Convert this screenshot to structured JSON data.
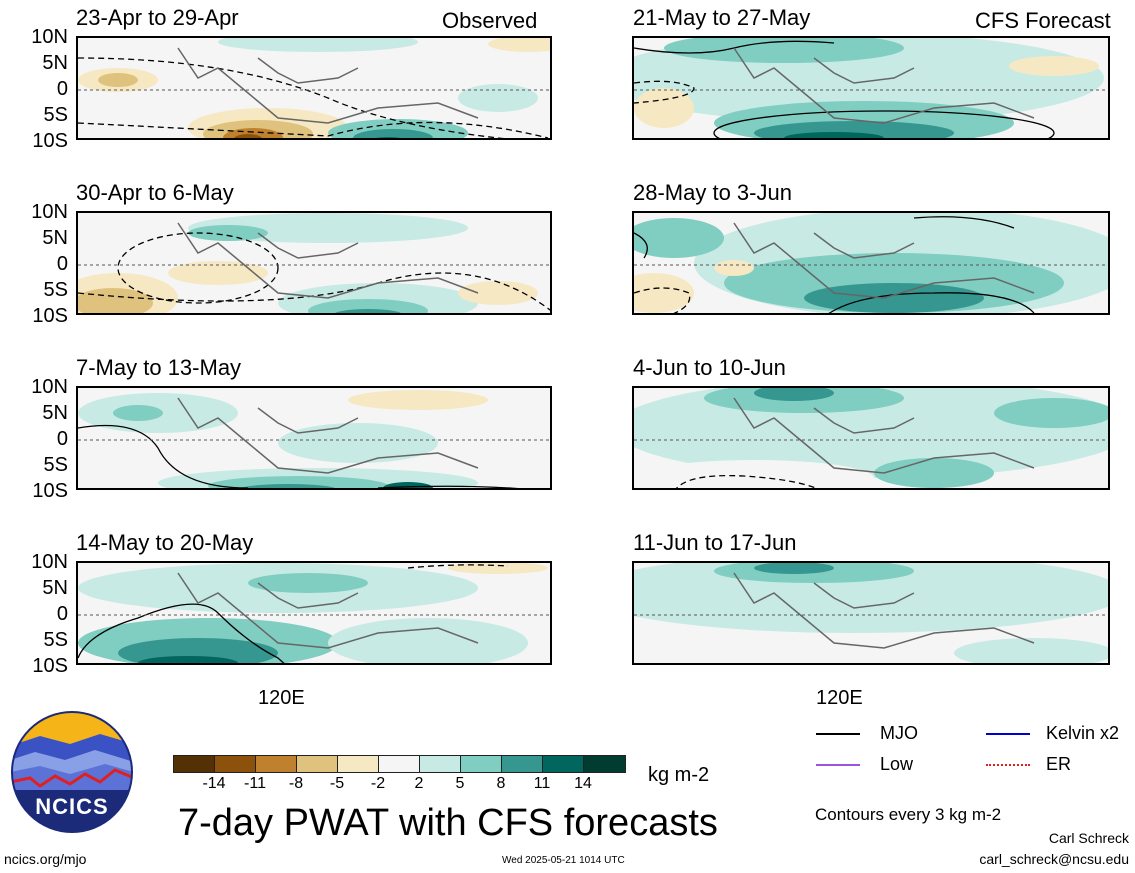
{
  "panels_left": [
    {
      "title": "23-Apr to 29-Apr",
      "tag": "Observed"
    },
    {
      "title": "30-Apr to 6-May",
      "tag": ""
    },
    {
      "title": "7-May to 13-May",
      "tag": ""
    },
    {
      "title": "14-May to 20-May",
      "tag": ""
    }
  ],
  "panels_right": [
    {
      "title": "21-May to 27-May",
      "tag": "CFS Forecast"
    },
    {
      "title": "28-May to 3-Jun",
      "tag": ""
    },
    {
      "title": "4-Jun to 10-Jun",
      "tag": ""
    },
    {
      "title": "11-Jun to 17-Jun",
      "tag": ""
    }
  ],
  "lat_labels": [
    "10N",
    "5N",
    "0",
    "5S",
    "10S"
  ],
  "lon_label": "120E",
  "colorbar": {
    "labels": [
      "-14",
      "-11",
      "-8",
      "-5",
      "-2",
      "2",
      "5",
      "8",
      "11",
      "14"
    ],
    "colors": [
      "#543005",
      "#8c510a",
      "#bf812d",
      "#dfc27d",
      "#f6e8c3",
      "#f5f5f5",
      "#c7eae5",
      "#80cdc1",
      "#35978f",
      "#01665e",
      "#003c30"
    ],
    "units": "kg m-2"
  },
  "title": "7-day PWAT with CFS forecasts",
  "legend": [
    {
      "label": "MJO",
      "color": "#000000"
    },
    {
      "label": "Kelvin x2",
      "color": "#0000cc"
    },
    {
      "label": "Low",
      "color": "#9955dd"
    },
    {
      "label": "ER",
      "color": "#dd2222"
    }
  ],
  "contour_note": "Contours every 3 kg m-2",
  "author": "Carl Schreck",
  "email": "carl_schreck@ncsu.edu",
  "site": "ncics.org/mjo",
  "timestamp": "Wed 2025-05-21 1014 UTC",
  "logo_text": "NCICS"
}
